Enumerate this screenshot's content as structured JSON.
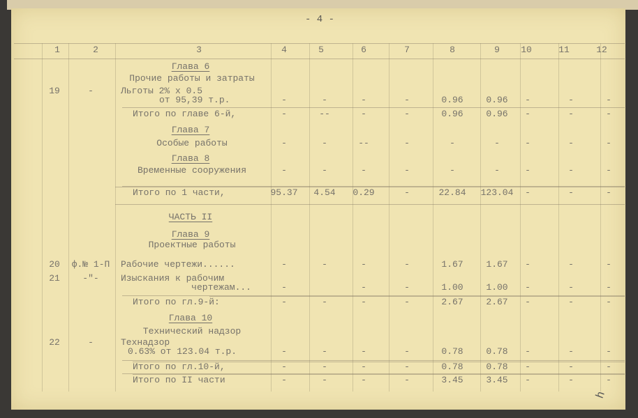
{
  "page_number": "- 4 -",
  "column_headers": [
    "1",
    "2",
    "3",
    "4",
    "5",
    "6",
    "7",
    "8",
    "9",
    "10",
    "11",
    "12"
  ],
  "rows": [
    {
      "heading": "Глава 6"
    },
    {
      "title": "Прочие работы и затраты"
    },
    {
      "num": "19",
      "code": "-",
      "label": "Льготы 2% х 0.5",
      "label2": "от 95,39 т.р.",
      "values": [
        "-",
        "-",
        "-",
        "-",
        "0.96",
        "0.96",
        "-",
        "-",
        "-"
      ]
    },
    {
      "label": "Итого по главе 6-й,",
      "values": [
        "-",
        "--",
        "-",
        "-",
        "0.96",
        "0.96",
        "-",
        "-",
        "-"
      ],
      "rule": true
    },
    {
      "heading": "Глава 7"
    },
    {
      "title": "Особые работы",
      "values": [
        "-",
        "-",
        "--",
        "-",
        "-",
        "-",
        "-",
        "-",
        "-"
      ]
    },
    {
      "heading": "Глава 8"
    },
    {
      "title": "Временные сооружения",
      "values": [
        "-",
        "-",
        "-",
        "-",
        "-",
        "-",
        "-",
        "-",
        "-"
      ]
    },
    {
      "label": "Итого по 1 части,",
      "values": [
        "95.37",
        "4.54",
        "0.29",
        "-",
        "22.84",
        "123.04",
        "-",
        "-",
        "-"
      ],
      "rule": true
    },
    {
      "heading": "ЧАСТЬ II"
    },
    {
      "heading": "Глава 9"
    },
    {
      "title": "Проектные работы"
    },
    {
      "num": "20",
      "code": "ф.№ 1-П",
      "label": "Рабочие чертежи......",
      "values": [
        "-",
        "-",
        "-",
        "-",
        "1.67",
        "1.67",
        "-",
        "-",
        "-"
      ]
    },
    {
      "num": "21",
      "code": "-\"-",
      "label": "Изыскания к рабочим",
      "label2": "чертежам...",
      "values": [
        "-",
        "",
        "-",
        "-",
        "1.00",
        "1.00",
        "-",
        "-",
        "-"
      ]
    },
    {
      "label": "Итого по гл.9-й:",
      "values": [
        "-",
        "-",
        "-",
        "-",
        "2.67",
        "2.67",
        "-",
        "-",
        "-"
      ],
      "rule": true
    },
    {
      "heading": "Глава 10"
    },
    {
      "title": "Технический надзор"
    },
    {
      "num": "22",
      "code": "-",
      "label": "Технадзор",
      "label2": "0.63% от 123.04 т.р.",
      "values": [
        "-",
        "-",
        "-",
        "-",
        "0.78",
        "0.78",
        "-",
        "-",
        "-"
      ]
    },
    {
      "label": "Итого по гл.10-й,",
      "values": [
        "-",
        "-",
        "-",
        "-",
        "0.78",
        "0.78",
        "-",
        "-",
        "-"
      ],
      "rule": true
    },
    {
      "label": "Итого по II части",
      "values": [
        "-",
        "-",
        "-",
        "-",
        "3.45",
        "3.45",
        "-",
        "-",
        "-"
      ],
      "rule": true
    }
  ]
}
